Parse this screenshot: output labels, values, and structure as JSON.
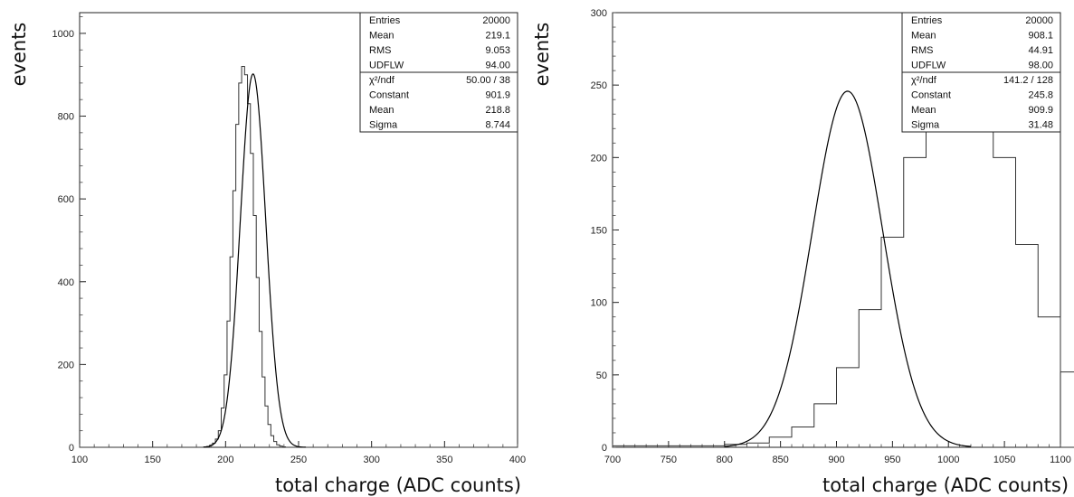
{
  "chart_data": [
    {
      "type": "line",
      "xlabel": "total charge (ADC counts)",
      "ylabel": "events",
      "xlim": [
        100,
        400
      ],
      "ylim": [
        0,
        1050
      ],
      "xticks": [
        "100",
        "150",
        "200",
        "250",
        "300",
        "350",
        "400"
      ],
      "yticks": [
        "0",
        "200",
        "400",
        "600",
        "800",
        "1000"
      ],
      "legend_placement": "top-right",
      "grid": false,
      "stats": [
        {
          "label": "Entries",
          "value": "20000"
        },
        {
          "label": "Mean",
          "value": "219.1"
        },
        {
          "label": "RMS",
          "value": "9.053"
        },
        {
          "label": "UDFLW",
          "value": "94.00"
        },
        {
          "label": "χ²/ndf",
          "value": "50.00 / 38"
        },
        {
          "label": "Constant",
          "value": "901.9"
        },
        {
          "label": "Mean",
          "value": "218.8"
        },
        {
          "label": "Sigma",
          "value": "8.744"
        }
      ],
      "series": [
        {
          "kind": "histogram",
          "x_start": 185,
          "x_step": 2,
          "values": [
            1,
            2,
            5,
            10,
            20,
            40,
            95,
            175,
            305,
            460,
            620,
            780,
            880,
            920,
            900,
            830,
            710,
            560,
            410,
            280,
            170,
            100,
            55,
            28,
            14,
            6,
            3,
            1
          ]
        },
        {
          "kind": "gaussian-fit",
          "constant": 901.9,
          "mean": 218.8,
          "sigma": 8.744,
          "x_from": 185,
          "x_to": 255
        }
      ]
    },
    {
      "type": "line",
      "xlabel": "total charge (ADC counts)",
      "ylabel": "events",
      "xlim": [
        700,
        1100
      ],
      "ylim": [
        0,
        300
      ],
      "xticks": [
        "700",
        "750",
        "800",
        "850",
        "900",
        "950",
        "1000",
        "1050",
        "1100"
      ],
      "yticks": [
        "0",
        "50",
        "100",
        "150",
        "200",
        "250",
        "300"
      ],
      "legend_placement": "top-right",
      "grid": false,
      "stats": [
        {
          "label": "Entries",
          "value": "20000"
        },
        {
          "label": "Mean",
          "value": "908.1"
        },
        {
          "label": "RMS",
          "value": "44.91"
        },
        {
          "label": "UDFLW",
          "value": "98.00"
        },
        {
          "label": "χ²/ndf",
          "value": "141.2 / 128"
        },
        {
          "label": "Constant",
          "value": "245.8"
        },
        {
          "label": "Mean",
          "value": "909.9"
        },
        {
          "label": "Sigma",
          "value": "31.48"
        }
      ],
      "series": [
        {
          "kind": "histogram",
          "x_start": 700,
          "x_step": 20,
          "values": [
            1,
            1,
            1,
            1,
            1,
            2,
            3,
            7,
            14,
            30,
            55,
            95,
            145,
            200,
            240,
            255,
            240,
            200,
            140,
            90,
            52,
            25,
            10,
            4,
            2,
            1
          ]
        },
        {
          "kind": "gaussian-fit",
          "constant": 245.8,
          "mean": 909.9,
          "sigma": 31.48,
          "x_from": 800,
          "x_to": 1020
        }
      ]
    }
  ]
}
